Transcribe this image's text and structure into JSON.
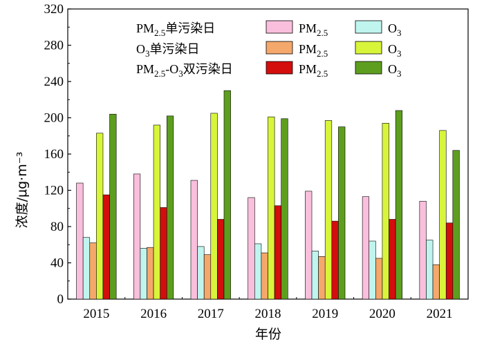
{
  "chart_data": {
    "type": "bar",
    "categories": [
      "2015",
      "2016",
      "2017",
      "2018",
      "2019",
      "2020",
      "2021"
    ],
    "ylim": [
      0,
      320
    ],
    "yticks": [
      0,
      40,
      80,
      120,
      160,
      200,
      240,
      280,
      320
    ],
    "xlabel": "年份",
    "ylabel": "浓度/μg·m⁻³",
    "groups": [
      {
        "label": "PM2.5单污染日"
      },
      {
        "label": "O3单污染日"
      },
      {
        "label": "PM2.5-O3双污染日"
      }
    ],
    "series": [
      {
        "name": "PM2.5",
        "group": 0,
        "color": "#f9bfdc",
        "values": [
          128,
          138,
          131,
          112,
          119,
          113,
          108
        ]
      },
      {
        "name": "O3",
        "group": 0,
        "color": "#bff5ee",
        "values": [
          68,
          56,
          58,
          61,
          53,
          64,
          65
        ]
      },
      {
        "name": "PM2.5",
        "group": 1,
        "color": "#f5a86b",
        "values": [
          62,
          57,
          49,
          51,
          47,
          45,
          38
        ]
      },
      {
        "name": "O3",
        "group": 1,
        "color": "#d8f53a",
        "values": [
          183,
          192,
          205,
          201,
          197,
          194,
          186
        ]
      },
      {
        "name": "PM2.5",
        "group": 2,
        "color": "#d40d0d",
        "values": [
          115,
          101,
          88,
          103,
          86,
          88,
          84
        ]
      },
      {
        "name": "O3",
        "group": 2,
        "color": "#5d9e1f",
        "values": [
          204,
          202,
          230,
          199,
          190,
          208,
          164
        ]
      }
    ],
    "legend": {
      "row_titles": [
        "PM2.5单污染日",
        "O3单污染日",
        "PM2.5-O3双污染日"
      ],
      "placement": "top"
    },
    "grid": false
  }
}
